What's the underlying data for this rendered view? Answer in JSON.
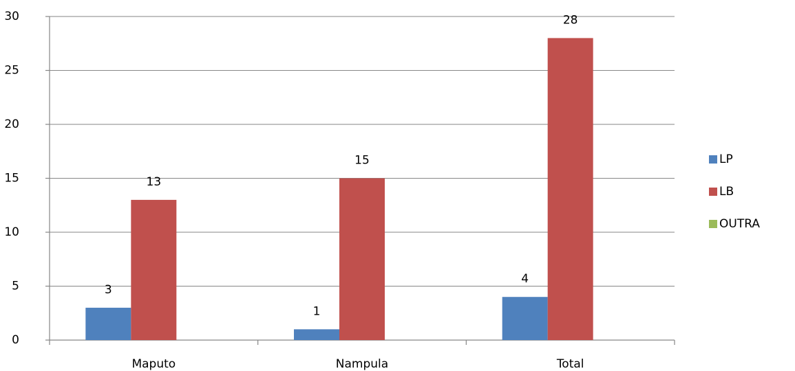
{
  "chart_data": {
    "type": "bar",
    "categories": [
      "Maputo",
      "Nampula",
      "Total"
    ],
    "series": [
      {
        "name": "LP",
        "color": "#4f81bd",
        "values": [
          3,
          1,
          4
        ]
      },
      {
        "name": "LB",
        "color": "#c0504d",
        "values": [
          13,
          15,
          28
        ]
      },
      {
        "name": "OUTRA",
        "color": "#9bbb59",
        "values": [
          null,
          null,
          null
        ]
      }
    ],
    "ylim": [
      0,
      30
    ],
    "yticks": [
      0,
      5,
      10,
      15,
      20,
      25,
      30
    ],
    "grid": true,
    "legend": "right"
  }
}
